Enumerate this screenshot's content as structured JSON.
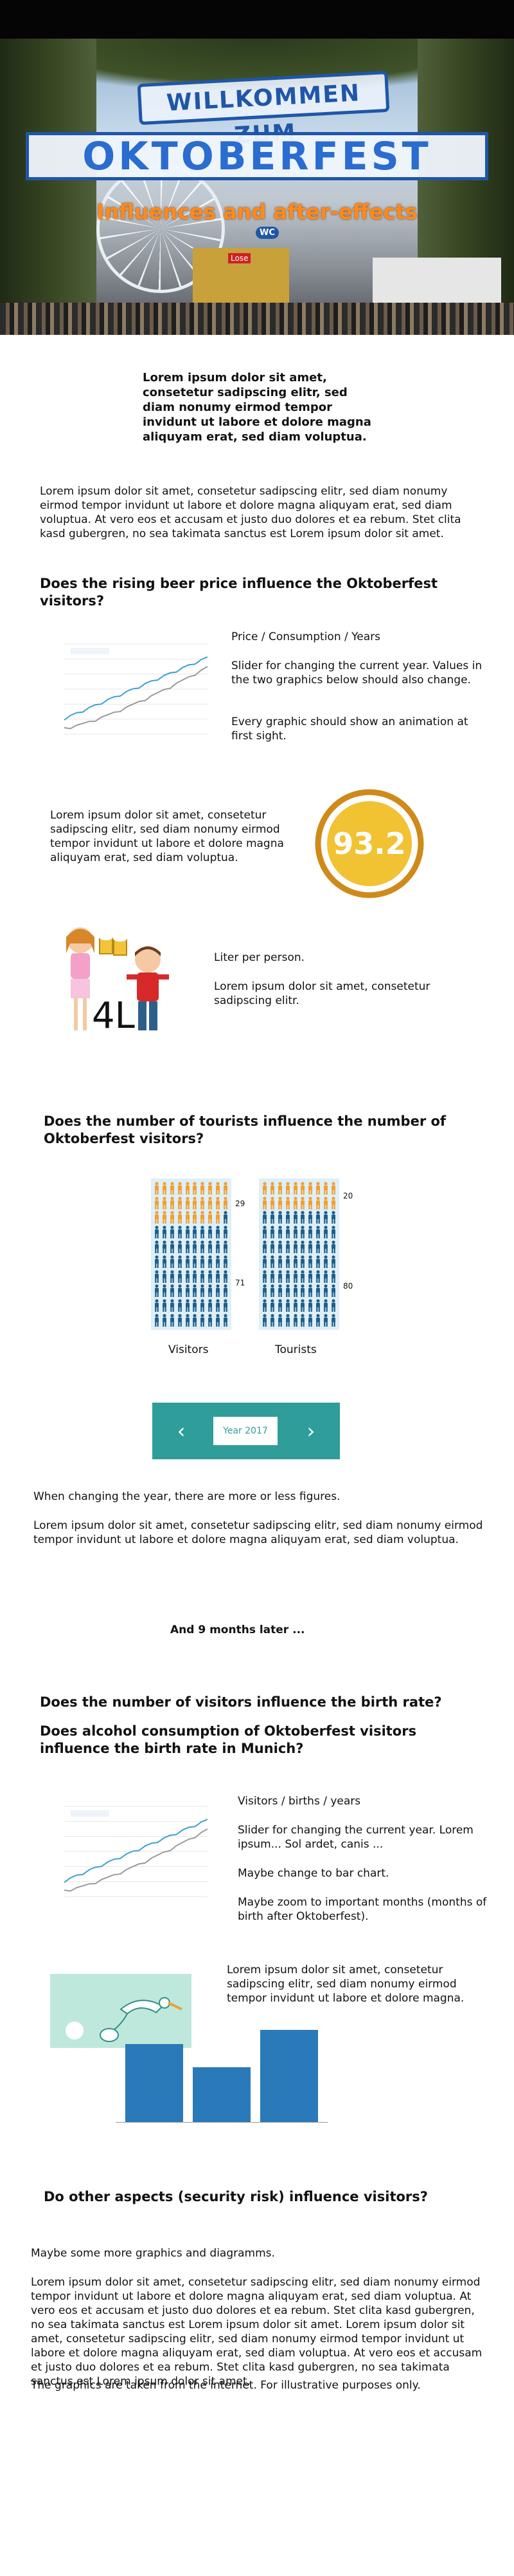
{
  "hero": {
    "welcome": "WILLKOMMEN ZUM",
    "title": "OKTOBERFEST",
    "subtitle": "Influences and after-effects",
    "wc_sign": "WC",
    "lose_sign": "Lose"
  },
  "intro": {
    "bold_text": "Lorem ipsum dolor sit amet, consetetur sadipscing elitr, sed diam nonumy eirmod tempor invidunt ut labore et dolore magna aliquyam erat, sed diam voluptua.",
    "paragraph": "Lorem ipsum dolor sit amet, consetetur sadipscing elitr, sed diam nonumy eirmod tempor invidunt ut labore et dolore magna aliquyam erat, sed diam voluptua. At vero eos et accusam et justo duo dolores et ea rebum. Stet clita kasd gubergren, no sea takimata sanctus est Lorem ipsum dolor sit amet."
  },
  "section_beer": {
    "heading": "Does the rising beer price influence the Oktoberfest visitors?",
    "chart_caption_title": "Price / Consumption / Years",
    "chart_caption_1": "Slider for changing the current year. Values in the two graphics below should also change.",
    "chart_caption_2": "Every graphic should show an animation at first sight.",
    "gauge_text": "Lorem ipsum dolor sit amet, consetetur sadipscing elitr, sed diam nonumy eirmod tempor invidunt ut labore et dolore magna aliquyam erat, sed diam voluptua.",
    "gauge_value": "93.2",
    "liter_value": "4L",
    "liter_title": "Liter per person.",
    "liter_text": "Lorem ipsum dolor sit amet, consetetur sadipscing elitr."
  },
  "section_tourists": {
    "heading": "Does the number of tourists influence the number of Oktoberfest visitors?",
    "visitors_label": "Visitors",
    "tourists_label": "Tourists",
    "visitors_top": "29",
    "visitors_bottom": "71",
    "tourists_top": "20",
    "tourists_bottom": "80",
    "visitors_fraction_top": 0.29,
    "tourists_fraction_top": 0.2,
    "year_label": "Year 2017",
    "prev_icon": "‹",
    "next_icon": "›",
    "change_note": "When changing the year, there are more or less figures.",
    "paragraph": "Lorem ipsum dolor sit amet, consetetur sadipscing elitr, sed diam nonumy eirmod tempor invidunt ut labore et dolore magna aliquyam erat, sed diam voluptua."
  },
  "later": "And 9 months later ...",
  "section_birth": {
    "heading_1": "Does the number of visitors influence the birth rate?",
    "heading_2": "Does alcohol consumption of Oktoberfest visitors influence the birth rate in Munich?",
    "chart_caption_title": "Visitors / births / years",
    "chart_caption_1": "Slider for changing the current year. Lorem ipsum... Sol ardet, canis ...",
    "chart_caption_2": "Maybe change to bar chart.",
    "chart_caption_3": "Maybe zoom to important months (months of birth after Oktoberfest).",
    "bar_text": "Lorem ipsum dolor sit amet, consetetur sadipscing elitr, sed diam nonumy eirmod tempor invidunt ut labore et dolore magna.",
    "bars": [
      0.78,
      0.55,
      0.92
    ]
  },
  "section_security": {
    "heading": "Do other aspects (security risk) influence visitors?",
    "line1": "Maybe some more graphics and diagramms.",
    "paragraph": "Lorem ipsum dolor sit amet, consetetur sadipscing elitr, sed diam nonumy eirmod tempor invidunt ut labore et dolore magna aliquyam erat, sed diam voluptua. At vero eos et accusam et justo duo dolores et ea rebum. Stet clita kasd gubergren, no sea takimata sanctus est Lorem ipsum dolor sit amet. Lorem ipsum dolor sit amet, consetetur sadipscing elitr, sed diam nonumy eirmod tempor invidunt ut labore et dolore magna aliquyam erat, sed diam voluptua. At vero eos et accusam et justo duo dolores et ea rebum. Stet clita kasd gubergren, no sea takimata sanctus est Lorem ipsum dolor sit amet.",
    "footer": "The graphics are taken from the internet. For illustrative purposes only."
  },
  "colors": {
    "accent_orange": "#ff8a1c",
    "gauge_ring": "#d08a1a",
    "gauge_fill": "#f1c232",
    "blue": "#2a79b8",
    "teal": "#2f9d9a",
    "person_orange": "#f0a030",
    "person_blue": "#1f5f8c"
  }
}
